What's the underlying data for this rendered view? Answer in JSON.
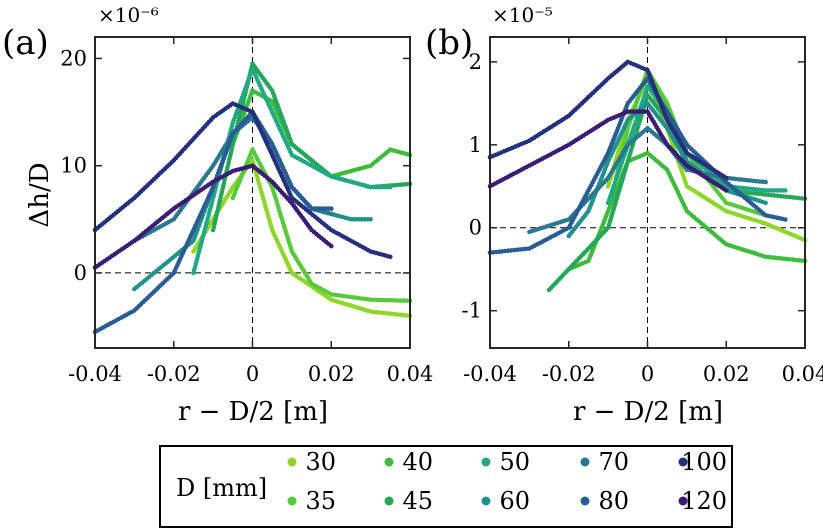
{
  "chart_data": [
    {
      "type": "scatter",
      "panel": "(a)",
      "scale_label": "×10⁻⁶",
      "xlabel": "r − D/2 [m]",
      "ylabel": "Δh/D",
      "xlim": [
        -0.04,
        0.04
      ],
      "ylim": [
        -7,
        22
      ],
      "xticks": [
        -0.04,
        -0.02,
        0,
        0.02,
        0.04
      ],
      "xtick_labels": [
        "-0.04",
        "-0.02",
        "0",
        "0.02",
        "0.04"
      ],
      "yticks": [
        0,
        10,
        20
      ],
      "ytick_labels": [
        "0",
        "10",
        "20"
      ],
      "reference_lines": {
        "x": 0,
        "y": 0
      },
      "series": [
        {
          "name": "30",
          "x": [
            -0.015,
            -0.01,
            -0.005,
            0,
            0.005,
            0.01,
            0.02,
            0.03,
            0.04
          ],
          "y": [
            2,
            5,
            8,
            10.5,
            4,
            0,
            -2.5,
            -3.6,
            -4
          ]
        },
        {
          "name": "35",
          "x": [
            -0.005,
            0,
            0.005,
            0.01,
            0.015,
            0.02,
            0.03,
            0.04
          ],
          "y": [
            7,
            11.5,
            8,
            2,
            -1,
            -2,
            -2.5,
            -2.6
          ]
        },
        {
          "name": "40",
          "x": [
            -0.005,
            0,
            0.005,
            0.01,
            0.02,
            0.03,
            0.035,
            0.04
          ],
          "y": [
            12,
            17,
            16,
            12,
            9,
            10,
            11.5,
            11
          ]
        },
        {
          "name": "45",
          "x": [
            -0.01,
            -0.005,
            0,
            0.005,
            0.01,
            0.02,
            0.03,
            0.04
          ],
          "y": [
            4,
            12,
            19.5,
            17,
            12,
            9,
            8,
            8.3
          ]
        },
        {
          "name": "50",
          "x": [
            -0.015,
            -0.01,
            -0.005,
            0,
            0.005,
            0.01,
            0.02,
            0.03,
            0.035
          ],
          "y": [
            0,
            7,
            14,
            19,
            15,
            11,
            9,
            8,
            8
          ]
        },
        {
          "name": "60",
          "x": [
            -0.03,
            -0.025,
            -0.015,
            -0.01,
            -0.005,
            0,
            0.005,
            0.01,
            0.015,
            0.02,
            0.025,
            0.03
          ],
          "y": [
            -1.5,
            0,
            3,
            8,
            13,
            15,
            12,
            8,
            6,
            5.5,
            5,
            5
          ]
        },
        {
          "name": "70",
          "x": [
            -0.03,
            -0.02,
            -0.01,
            -0.005,
            0,
            0.005,
            0.01,
            0.015,
            0.02
          ],
          "y": [
            3,
            5,
            10,
            13,
            14.5,
            12,
            8,
            6,
            5.5
          ]
        },
        {
          "name": "80",
          "x": [
            -0.04,
            -0.03,
            -0.02,
            -0.01,
            -0.005,
            0,
            0.005,
            0.01,
            0.015,
            0.02
          ],
          "y": [
            -5.5,
            -3.5,
            0,
            8,
            13,
            15,
            12,
            8,
            6,
            6
          ]
        },
        {
          "name": "100",
          "x": [
            -0.04,
            -0.03,
            -0.02,
            -0.01,
            -0.005,
            0,
            0.005,
            0.01,
            0.02,
            0.03,
            0.035
          ],
          "y": [
            4,
            7,
            10.5,
            14.5,
            15.8,
            15,
            11,
            7,
            4,
            2,
            1.5
          ]
        },
        {
          "name": "120",
          "x": [
            -0.04,
            -0.03,
            -0.02,
            -0.01,
            -0.005,
            0,
            0.005,
            0.01,
            0.015,
            0.02
          ],
          "y": [
            0.5,
            3,
            6,
            8.5,
            9.5,
            10,
            8.5,
            6.5,
            4,
            2.5
          ]
        }
      ]
    },
    {
      "type": "scatter",
      "panel": "(b)",
      "scale_label": "×10⁻⁵",
      "xlabel": "r − D/2 [m]",
      "ylabel": "",
      "xlim": [
        -0.04,
        0.04
      ],
      "ylim": [
        -1.45,
        2.3
      ],
      "xticks": [
        -0.04,
        -0.02,
        0,
        0.02,
        0.04
      ],
      "xtick_labels": [
        "-0.04",
        "-0.02",
        "0",
        "0.02",
        "0.04"
      ],
      "yticks": [
        -1,
        0,
        1,
        2
      ],
      "ytick_labels": [
        "-1",
        "0",
        "1",
        "2"
      ],
      "reference_lines": {
        "x": 0,
        "y": 0
      },
      "series": [
        {
          "name": "30",
          "x": [
            -0.01,
            -0.005,
            0,
            0.005,
            0.01,
            0.02,
            0.03,
            0.04
          ],
          "y": [
            0.5,
            1.3,
            1.8,
            1.2,
            0.5,
            0.2,
            0.05,
            -0.15
          ]
        },
        {
          "name": "35",
          "x": [
            -0.008,
            -0.005,
            0,
            0.005,
            0.01,
            0.02,
            0.03
          ],
          "y": [
            0.6,
            1.2,
            1.9,
            1.5,
            0.9,
            0.3,
            0.15
          ]
        },
        {
          "name": "40",
          "x": [
            -0.02,
            -0.015,
            -0.01,
            -0.005,
            0,
            0.005,
            0.01,
            0.02,
            0.03,
            0.04
          ],
          "y": [
            -0.5,
            -0.4,
            0.2,
            0.8,
            0.9,
            0.7,
            0.2,
            -0.2,
            -0.35,
            -0.4
          ]
        },
        {
          "name": "45",
          "x": [
            -0.025,
            -0.02,
            -0.01,
            -0.005,
            0,
            0.005,
            0.01,
            0.02,
            0.03,
            0.04
          ],
          "y": [
            -0.75,
            -0.5,
            0,
            0.8,
            1.6,
            1.3,
            0.8,
            0.45,
            0.4,
            0.35
          ]
        },
        {
          "name": "50",
          "x": [
            -0.01,
            -0.005,
            0,
            0.005,
            0.01,
            0.02,
            0.03,
            0.035
          ],
          "y": [
            0.3,
            1.0,
            1.7,
            1.4,
            0.9,
            0.5,
            0.45,
            0.45
          ]
        },
        {
          "name": "60",
          "x": [
            -0.02,
            -0.015,
            -0.01,
            -0.005,
            0,
            0.005,
            0.01,
            0.02,
            0.03
          ],
          "y": [
            -0.1,
            0.2,
            0.8,
            1.3,
            1.5,
            1.2,
            0.8,
            0.45,
            0.3
          ]
        },
        {
          "name": "70",
          "x": [
            -0.03,
            -0.02,
            -0.01,
            -0.005,
            0,
            0.005,
            0.01,
            0.02,
            0.03
          ],
          "y": [
            -0.05,
            0.1,
            0.6,
            1.0,
            1.2,
            1.0,
            0.7,
            0.6,
            0.55
          ]
        },
        {
          "name": "80",
          "x": [
            -0.04,
            -0.03,
            -0.02,
            -0.01,
            -0.005,
            0,
            0.005,
            0.01,
            0.02,
            0.03,
            0.035
          ],
          "y": [
            -0.3,
            -0.25,
            0,
            0.9,
            1.5,
            1.8,
            1.4,
            1.0,
            0.55,
            0.15,
            0.1
          ]
        },
        {
          "name": "100",
          "x": [
            -0.04,
            -0.03,
            -0.02,
            -0.01,
            -0.005,
            0,
            0.005,
            0.01,
            0.02
          ],
          "y": [
            0.85,
            1.05,
            1.35,
            1.8,
            2.0,
            1.9,
            1.3,
            0.9,
            0.6
          ]
        },
        {
          "name": "120",
          "x": [
            -0.04,
            -0.03,
            -0.02,
            -0.01,
            -0.005,
            0,
            0.005,
            0.01,
            0.02
          ],
          "y": [
            0.5,
            0.75,
            1.0,
            1.3,
            1.4,
            1.4,
            1.0,
            0.75,
            0.45
          ]
        }
      ]
    }
  ],
  "legend": {
    "title": "D [mm]",
    "entries": [
      {
        "label": "30",
        "color": "#8fd62b"
      },
      {
        "label": "40",
        "color": "#3cbb3c"
      },
      {
        "label": "50",
        "color": "#22a884"
      },
      {
        "label": "70",
        "color": "#2a788e"
      },
      {
        "label": "100",
        "color": "#24307a"
      },
      {
        "label": "35",
        "color": "#58c93a"
      },
      {
        "label": "45",
        "color": "#25a65a"
      },
      {
        "label": "60",
        "color": "#21918c"
      },
      {
        "label": "80",
        "color": "#2a5c94"
      },
      {
        "label": "120",
        "color": "#3b1c73"
      }
    ]
  }
}
